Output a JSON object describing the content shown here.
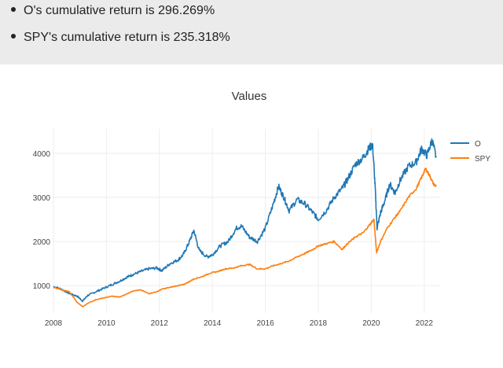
{
  "summary": {
    "items": [
      {
        "text": "O's cumulative return is 296.269%"
      },
      {
        "text": "SPY's cumulative return is 235.318%"
      }
    ]
  },
  "colors": {
    "O": "#1f77b4",
    "SPY": "#ff7f0e",
    "grid": "#eeeeee",
    "summaryBg": "#ebebeb"
  },
  "chart_data": {
    "type": "line",
    "title": "Values",
    "xlabel": "",
    "ylabel": "",
    "xlim": [
      2008.0,
      2022.6
    ],
    "ylim": [
      380,
      4550
    ],
    "xticks": [
      2008,
      2010,
      2012,
      2014,
      2016,
      2018,
      2020,
      2022
    ],
    "yticks": [
      1000,
      2000,
      3000,
      4000
    ],
    "grid": true,
    "legend": "top-right",
    "series": [
      {
        "name": "O",
        "points": [
          [
            2008.0,
            980
          ],
          [
            2008.3,
            920
          ],
          [
            2008.6,
            820
          ],
          [
            2008.9,
            760
          ],
          [
            2009.1,
            650
          ],
          [
            2009.3,
            780
          ],
          [
            2009.6,
            860
          ],
          [
            2009.9,
            940
          ],
          [
            2010.2,
            1020
          ],
          [
            2010.5,
            1100
          ],
          [
            2010.8,
            1200
          ],
          [
            2011.0,
            1250
          ],
          [
            2011.3,
            1320
          ],
          [
            2011.6,
            1380
          ],
          [
            2011.9,
            1400
          ],
          [
            2012.1,
            1340
          ],
          [
            2012.4,
            1500
          ],
          [
            2012.7,
            1580
          ],
          [
            2012.9,
            1700
          ],
          [
            2013.1,
            1950
          ],
          [
            2013.3,
            2250
          ],
          [
            2013.5,
            1800
          ],
          [
            2013.8,
            1650
          ],
          [
            2014.0,
            1700
          ],
          [
            2014.3,
            1900
          ],
          [
            2014.6,
            2000
          ],
          [
            2014.9,
            2300
          ],
          [
            2015.1,
            2350
          ],
          [
            2015.4,
            2100
          ],
          [
            2015.7,
            2000
          ],
          [
            2016.0,
            2300
          ],
          [
            2016.3,
            2850
          ],
          [
            2016.5,
            3250
          ],
          [
            2016.7,
            3000
          ],
          [
            2016.9,
            2700
          ],
          [
            2017.2,
            2950
          ],
          [
            2017.5,
            2850
          ],
          [
            2017.8,
            2650
          ],
          [
            2018.0,
            2500
          ],
          [
            2018.3,
            2700
          ],
          [
            2018.6,
            3000
          ],
          [
            2018.9,
            3200
          ],
          [
            2019.1,
            3400
          ],
          [
            2019.4,
            3750
          ],
          [
            2019.7,
            3900
          ],
          [
            2019.9,
            4100
          ],
          [
            2020.05,
            4200
          ],
          [
            2020.15,
            3200
          ],
          [
            2020.22,
            2300
          ],
          [
            2020.35,
            2650
          ],
          [
            2020.5,
            2900
          ],
          [
            2020.7,
            3300
          ],
          [
            2020.9,
            3100
          ],
          [
            2021.1,
            3400
          ],
          [
            2021.4,
            3700
          ],
          [
            2021.7,
            3800
          ],
          [
            2021.9,
            4100
          ],
          [
            2022.1,
            3950
          ],
          [
            2022.3,
            4300
          ],
          [
            2022.45,
            3900
          ]
        ]
      },
      {
        "name": "SPY",
        "points": [
          [
            2008.0,
            960
          ],
          [
            2008.3,
            910
          ],
          [
            2008.6,
            860
          ],
          [
            2008.9,
            620
          ],
          [
            2009.1,
            520
          ],
          [
            2009.3,
            600
          ],
          [
            2009.6,
            680
          ],
          [
            2009.9,
            720
          ],
          [
            2010.2,
            760
          ],
          [
            2010.5,
            740
          ],
          [
            2010.8,
            820
          ],
          [
            2011.0,
            880
          ],
          [
            2011.3,
            900
          ],
          [
            2011.6,
            820
          ],
          [
            2011.9,
            860
          ],
          [
            2012.1,
            920
          ],
          [
            2012.4,
            960
          ],
          [
            2012.7,
            1000
          ],
          [
            2012.9,
            1020
          ],
          [
            2013.1,
            1080
          ],
          [
            2013.3,
            1150
          ],
          [
            2013.6,
            1200
          ],
          [
            2013.9,
            1280
          ],
          [
            2014.2,
            1320
          ],
          [
            2014.5,
            1380
          ],
          [
            2014.8,
            1400
          ],
          [
            2015.1,
            1450
          ],
          [
            2015.4,
            1480
          ],
          [
            2015.7,
            1380
          ],
          [
            2016.0,
            1380
          ],
          [
            2016.3,
            1450
          ],
          [
            2016.6,
            1500
          ],
          [
            2016.9,
            1560
          ],
          [
            2017.2,
            1650
          ],
          [
            2017.5,
            1730
          ],
          [
            2017.8,
            1820
          ],
          [
            2018.0,
            1900
          ],
          [
            2018.3,
            1950
          ],
          [
            2018.6,
            2000
          ],
          [
            2018.9,
            1820
          ],
          [
            2019.1,
            1950
          ],
          [
            2019.4,
            2100
          ],
          [
            2019.7,
            2200
          ],
          [
            2019.9,
            2350
          ],
          [
            2020.1,
            2500
          ],
          [
            2020.2,
            1750
          ],
          [
            2020.35,
            2000
          ],
          [
            2020.6,
            2300
          ],
          [
            2020.9,
            2550
          ],
          [
            2021.1,
            2700
          ],
          [
            2021.4,
            3000
          ],
          [
            2021.7,
            3200
          ],
          [
            2021.9,
            3450
          ],
          [
            2022.05,
            3650
          ],
          [
            2022.2,
            3500
          ],
          [
            2022.35,
            3300
          ],
          [
            2022.45,
            3250
          ]
        ]
      }
    ]
  }
}
